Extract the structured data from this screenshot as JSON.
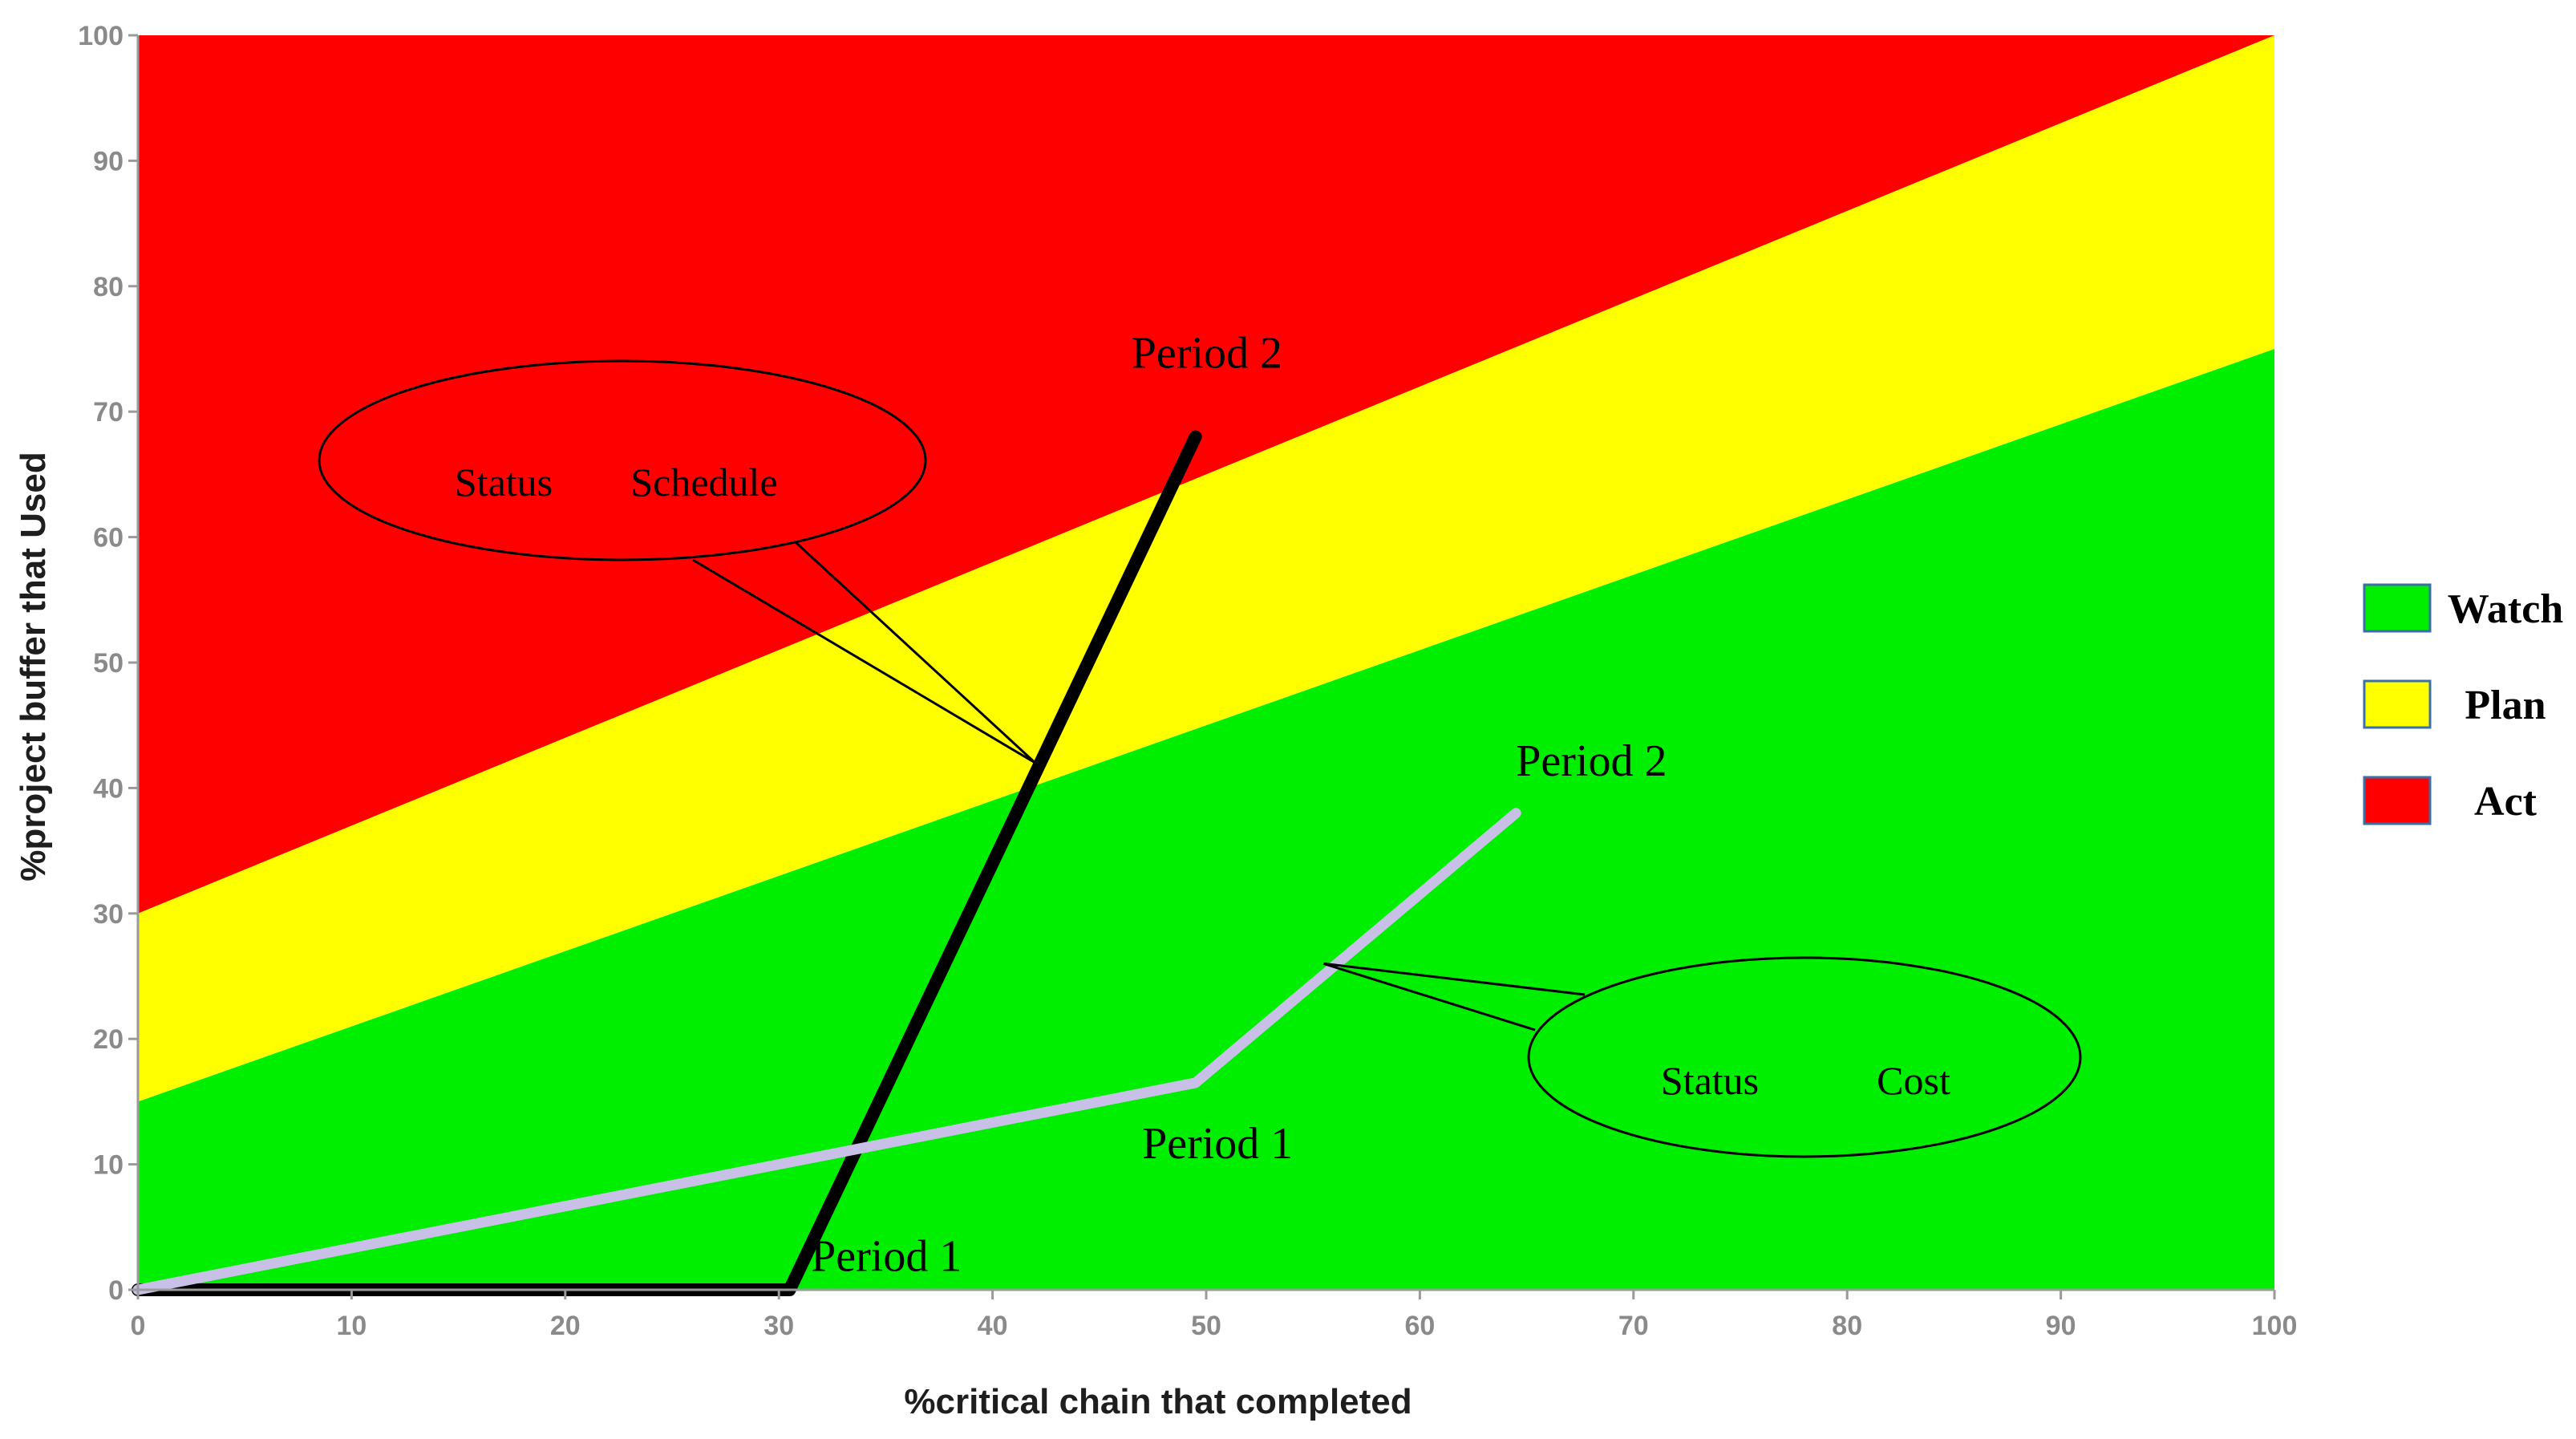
{
  "chart_data": {
    "type": "line",
    "title": "",
    "xlabel": "%critical chain that completed",
    "ylabel": "%project buffer that Used",
    "xlim": [
      0,
      100
    ],
    "ylim": [
      0,
      100
    ],
    "x_ticks": [
      0,
      10,
      20,
      30,
      40,
      50,
      60,
      70,
      80,
      90,
      100
    ],
    "y_ticks": [
      0,
      10,
      20,
      30,
      40,
      50,
      60,
      70,
      80,
      90,
      100
    ],
    "grid": false,
    "legend_position": "right",
    "zones": [
      {
        "name": "Watch",
        "color": "#00ee00",
        "lower_boundary": {
          "x": [
            0,
            100
          ],
          "y": [
            0,
            0
          ]
        },
        "upper_boundary": {
          "x": [
            0,
            100
          ],
          "y": [
            15,
            75
          ]
        }
      },
      {
        "name": "Plan",
        "color": "#ffff00",
        "lower_boundary": {
          "x": [
            0,
            100
          ],
          "y": [
            15,
            75
          ]
        },
        "upper_boundary": {
          "x": [
            0,
            100
          ],
          "y": [
            30,
            100
          ]
        }
      },
      {
        "name": "Act",
        "color": "#ff0000",
        "lower_boundary": {
          "x": [
            0,
            100
          ],
          "y": [
            30,
            100
          ]
        },
        "upper_boundary": {
          "x": [
            0,
            100
          ],
          "y": [
            100,
            100
          ]
        }
      }
    ],
    "series": [
      {
        "key": "schedule",
        "color": "#000000",
        "x": [
          0,
          30.5,
          49.5
        ],
        "y": [
          0,
          0,
          68
        ]
      },
      {
        "key": "cost",
        "color": "#c8c0e6",
        "x": [
          0,
          49.5,
          64.5
        ],
        "y": [
          0,
          16.5,
          38
        ]
      }
    ],
    "annotations": [
      {
        "key": "schedule_p1",
        "text": "Period 1",
        "x": 31.5,
        "y": 1.5
      },
      {
        "key": "schedule_p2",
        "text": "Period 2",
        "x": 46.5,
        "y": 73.5
      },
      {
        "key": "cost_p1",
        "text": "Period 1",
        "x": 47,
        "y": 10.5
      },
      {
        "key": "cost_p2",
        "text": "Period 2",
        "x": 64.5,
        "y": 41
      }
    ],
    "callouts": [
      {
        "key": "schedule_status",
        "label_a": "Status",
        "label_b": "Schedule",
        "pointer_target": {
          "x": 42,
          "y": 42
        }
      },
      {
        "key": "cost_status",
        "label_a": "Status",
        "label_b": "Cost",
        "pointer_target": {
          "x": 55.5,
          "y": 26
        }
      }
    ],
    "legend": [
      {
        "label": "Watch",
        "color": "#00ee00"
      },
      {
        "label": "Plan",
        "color": "#ffff00"
      },
      {
        "label": "Act",
        "color": "#ff0000"
      }
    ]
  }
}
